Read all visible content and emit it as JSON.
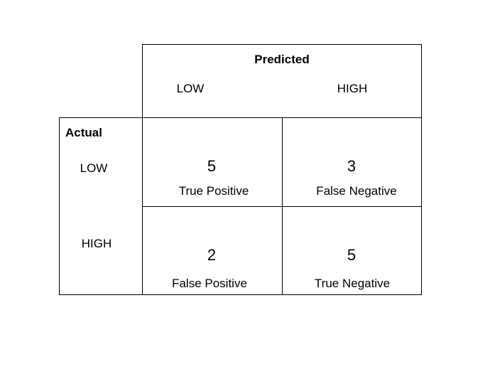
{
  "predicted": {
    "title": "Predicted",
    "columns": [
      "LOW",
      "HIGH"
    ]
  },
  "actual": {
    "title": "Actual",
    "rows": [
      "LOW",
      "HIGH"
    ]
  },
  "cells": [
    {
      "value": "5",
      "label": "True Positive"
    },
    {
      "value": "3",
      "label": "False Negative"
    },
    {
      "value": "2",
      "label": "False Positive"
    },
    {
      "value": "5",
      "label": "True Negative"
    }
  ]
}
